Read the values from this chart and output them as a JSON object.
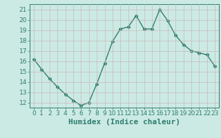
{
  "x": [
    0,
    1,
    2,
    3,
    4,
    5,
    6,
    7,
    8,
    9,
    10,
    11,
    12,
    13,
    14,
    15,
    16,
    17,
    18,
    19,
    20,
    21,
    22,
    23
  ],
  "y": [
    16.2,
    15.2,
    14.3,
    13.5,
    12.8,
    12.2,
    11.7,
    12.0,
    13.8,
    15.8,
    17.9,
    19.1,
    19.3,
    20.4,
    19.1,
    19.1,
    21.0,
    19.9,
    18.5,
    17.6,
    17.0,
    16.8,
    16.6,
    15.5
  ],
  "xlabel": "Humidex (Indice chaleur)",
  "xlim": [
    -0.5,
    23.5
  ],
  "ylim": [
    11.5,
    21.5
  ],
  "yticks": [
    12,
    13,
    14,
    15,
    16,
    17,
    18,
    19,
    20,
    21
  ],
  "xticks": [
    0,
    1,
    2,
    3,
    4,
    5,
    6,
    7,
    8,
    9,
    10,
    11,
    12,
    13,
    14,
    15,
    16,
    17,
    18,
    19,
    20,
    21,
    22,
    23
  ],
  "line_color": "#2d7d6e",
  "bg_color": "#cceae4",
  "grid_color": "#c8b8b8",
  "tick_color": "#2d7d6e",
  "label_color": "#2d7d6e",
  "tick_fontsize": 6.5,
  "label_fontsize": 8
}
